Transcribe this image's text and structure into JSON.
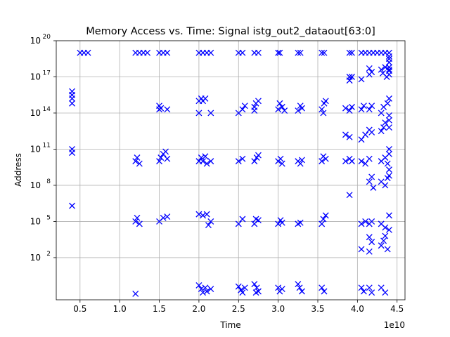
{
  "chart_data": {
    "type": "scatter",
    "title": "Memory Access vs. Time: Signal istg_out2_dataout[63:0]",
    "xlabel": "Time",
    "ylabel": "Address",
    "x_offset_label": "1e10",
    "x_scale": "linear",
    "y_scale": "log",
    "xlim": [
      0.2,
      4.6
    ],
    "ylim_exp": [
      -1.5,
      20
    ],
    "x_ticks": [
      "0.5",
      "1.0",
      "1.5",
      "2.0",
      "2.5",
      "3.0",
      "3.5",
      "4.0",
      "4.5"
    ],
    "y_ticks": [
      {
        "base": "10",
        "exp": "2"
      },
      {
        "base": "10",
        "exp": "5"
      },
      {
        "base": "10",
        "exp": "8"
      },
      {
        "base": "10",
        "exp": "11"
      },
      {
        "base": "10",
        "exp": "14"
      },
      {
        "base": "10",
        "exp": "17"
      },
      {
        "base": "10",
        "exp": "20"
      }
    ],
    "grid": true,
    "marker": "x",
    "marker_color": "#0000ff",
    "series": [
      {
        "name": "",
        "points": [
          [
            0.4,
            15.2
          ],
          [
            0.4,
            15.5
          ],
          [
            0.4,
            15.8
          ],
          [
            0.4,
            14.8
          ],
          [
            0.4,
            11.0
          ],
          [
            0.4,
            10.7
          ],
          [
            0.4,
            6.3
          ],
          [
            0.5,
            19.0
          ],
          [
            0.55,
            19.0
          ],
          [
            0.6,
            19.0
          ],
          [
            1.2,
            19.0
          ],
          [
            1.25,
            19.0
          ],
          [
            1.3,
            19.0
          ],
          [
            1.35,
            19.0
          ],
          [
            1.5,
            19.0
          ],
          [
            1.55,
            19.0
          ],
          [
            1.6,
            19.0
          ],
          [
            2.0,
            19.0
          ],
          [
            2.05,
            19.0
          ],
          [
            2.1,
            19.0
          ],
          [
            2.15,
            19.0
          ],
          [
            2.5,
            19.0
          ],
          [
            2.55,
            19.0
          ],
          [
            2.7,
            19.0
          ],
          [
            2.75,
            19.0
          ],
          [
            3.0,
            19.0
          ],
          [
            3.02,
            19.0
          ],
          [
            3.25,
            19.0
          ],
          [
            3.28,
            19.0
          ],
          [
            3.55,
            19.0
          ],
          [
            3.58,
            19.0
          ],
          [
            3.9,
            19.0
          ],
          [
            3.93,
            19.0
          ],
          [
            4.05,
            19.0
          ],
          [
            4.1,
            19.0
          ],
          [
            4.15,
            19.0
          ],
          [
            4.2,
            19.0
          ],
          [
            4.25,
            19.0
          ],
          [
            4.3,
            19.0
          ],
          [
            4.35,
            19.0
          ],
          [
            4.4,
            19.0
          ],
          [
            4.4,
            18.7
          ],
          [
            4.4,
            18.5
          ],
          [
            4.4,
            18.2
          ],
          [
            4.4,
            17.8
          ],
          [
            4.4,
            17.5
          ],
          [
            4.4,
            17.2
          ],
          [
            3.9,
            17.0
          ],
          [
            3.9,
            16.7
          ],
          [
            3.93,
            17.0
          ],
          [
            4.05,
            16.8
          ],
          [
            4.15,
            17.2
          ],
          [
            4.15,
            17.7
          ],
          [
            4.18,
            17.4
          ],
          [
            4.3,
            17.6
          ],
          [
            4.32,
            17.3
          ],
          [
            4.35,
            17.8
          ],
          [
            4.37,
            17.0
          ],
          [
            4.4,
            17.6
          ],
          [
            1.5,
            14.3
          ],
          [
            1.5,
            14.6
          ],
          [
            1.52,
            14.4
          ],
          [
            1.6,
            14.3
          ],
          [
            2.0,
            15.0
          ],
          [
            2.03,
            15.2
          ],
          [
            2.05,
            15.0
          ],
          [
            2.08,
            15.2
          ],
          [
            2.0,
            14.0
          ],
          [
            2.15,
            14.0
          ],
          [
            2.5,
            14.0
          ],
          [
            2.55,
            14.3
          ],
          [
            2.58,
            14.6
          ],
          [
            2.7,
            14.2
          ],
          [
            2.72,
            14.8
          ],
          [
            2.75,
            15.0
          ],
          [
            2.7,
            14.5
          ],
          [
            3.0,
            14.3
          ],
          [
            3.02,
            14.8
          ],
          [
            3.05,
            14.5
          ],
          [
            3.08,
            14.2
          ],
          [
            3.25,
            14.2
          ],
          [
            3.28,
            14.6
          ],
          [
            3.3,
            14.4
          ],
          [
            3.55,
            14.3
          ],
          [
            3.58,
            14.8
          ],
          [
            3.6,
            15.0
          ],
          [
            3.57,
            14.0
          ],
          [
            3.85,
            14.4
          ],
          [
            3.9,
            14.2
          ],
          [
            3.93,
            14.5
          ],
          [
            4.05,
            14.3
          ],
          [
            4.08,
            14.6
          ],
          [
            4.15,
            14.3
          ],
          [
            4.18,
            14.6
          ],
          [
            4.3,
            14.0
          ],
          [
            4.33,
            14.5
          ],
          [
            4.38,
            14.8
          ],
          [
            4.4,
            15.2
          ],
          [
            4.4,
            13.8
          ],
          [
            3.85,
            12.2
          ],
          [
            3.9,
            12.0
          ],
          [
            4.05,
            11.8
          ],
          [
            4.1,
            12.2
          ],
          [
            4.15,
            12.6
          ],
          [
            4.18,
            12.4
          ],
          [
            4.3,
            12.5
          ],
          [
            4.33,
            12.8
          ],
          [
            4.35,
            13.2
          ],
          [
            4.4,
            13.4
          ],
          [
            4.4,
            12.8
          ],
          [
            1.2,
            10.0
          ],
          [
            1.22,
            10.3
          ],
          [
            1.25,
            9.8
          ],
          [
            1.5,
            10.0
          ],
          [
            1.52,
            10.3
          ],
          [
            1.55,
            10.6
          ],
          [
            1.58,
            10.8
          ],
          [
            1.6,
            10.2
          ],
          [
            2.0,
            10.0
          ],
          [
            2.03,
            10.3
          ],
          [
            2.05,
            10.0
          ],
          [
            2.08,
            10.4
          ],
          [
            2.1,
            9.8
          ],
          [
            2.15,
            10.0
          ],
          [
            2.5,
            10.0
          ],
          [
            2.55,
            10.2
          ],
          [
            2.7,
            10.0
          ],
          [
            2.73,
            10.3
          ],
          [
            2.75,
            10.5
          ],
          [
            3.0,
            10.0
          ],
          [
            3.03,
            10.2
          ],
          [
            3.05,
            9.8
          ],
          [
            3.25,
            10.0
          ],
          [
            3.28,
            9.8
          ],
          [
            3.3,
            10.1
          ],
          [
            3.55,
            10.0
          ],
          [
            3.57,
            10.4
          ],
          [
            3.6,
            10.2
          ],
          [
            3.85,
            10.0
          ],
          [
            3.9,
            10.2
          ],
          [
            3.93,
            10.0
          ],
          [
            4.05,
            10.0
          ],
          [
            4.1,
            9.8
          ],
          [
            4.15,
            10.2
          ],
          [
            4.3,
            10.0
          ],
          [
            4.35,
            10.3
          ],
          [
            4.38,
            9.8
          ],
          [
            4.4,
            11.0
          ],
          [
            4.4,
            10.6
          ],
          [
            4.4,
            9.3
          ],
          [
            3.9,
            7.2
          ],
          [
            4.15,
            8.3
          ],
          [
            4.18,
            8.7
          ],
          [
            4.2,
            7.8
          ],
          [
            4.3,
            8.3
          ],
          [
            4.35,
            8.0
          ],
          [
            4.38,
            8.6
          ],
          [
            4.4,
            8.8
          ],
          [
            1.2,
            5.0
          ],
          [
            1.22,
            5.3
          ],
          [
            1.25,
            4.8
          ],
          [
            1.5,
            5.0
          ],
          [
            1.55,
            5.3
          ],
          [
            1.6,
            5.4
          ],
          [
            2.0,
            5.6
          ],
          [
            2.05,
            5.5
          ],
          [
            2.1,
            5.6
          ],
          [
            2.15,
            5.0
          ],
          [
            2.12,
            4.7
          ],
          [
            2.5,
            4.8
          ],
          [
            2.55,
            5.2
          ],
          [
            2.7,
            4.8
          ],
          [
            2.72,
            5.2
          ],
          [
            2.75,
            5.1
          ],
          [
            3.0,
            4.8
          ],
          [
            3.03,
            5.1
          ],
          [
            3.05,
            4.9
          ],
          [
            3.25,
            4.8
          ],
          [
            3.28,
            4.9
          ],
          [
            3.55,
            4.8
          ],
          [
            3.57,
            5.2
          ],
          [
            3.6,
            5.5
          ],
          [
            4.05,
            4.8
          ],
          [
            4.1,
            5.0
          ],
          [
            4.15,
            4.8
          ],
          [
            4.18,
            5.0
          ],
          [
            4.3,
            4.8
          ],
          [
            4.35,
            4.5
          ],
          [
            4.4,
            4.3
          ],
          [
            4.4,
            5.5
          ],
          [
            4.15,
            3.7
          ],
          [
            4.18,
            3.3
          ],
          [
            4.3,
            3.0
          ],
          [
            4.33,
            3.4
          ],
          [
            4.35,
            3.8
          ],
          [
            4.38,
            2.7
          ],
          [
            4.05,
            2.7
          ],
          [
            4.15,
            2.5
          ],
          [
            1.2,
            -1.0
          ],
          [
            2.0,
            -0.3
          ],
          [
            2.03,
            -0.6
          ],
          [
            2.05,
            -0.9
          ],
          [
            2.08,
            -0.5
          ],
          [
            2.1,
            -0.8
          ],
          [
            2.15,
            -0.6
          ],
          [
            2.5,
            -0.4
          ],
          [
            2.53,
            -0.7
          ],
          [
            2.55,
            -0.9
          ],
          [
            2.58,
            -0.5
          ],
          [
            2.7,
            -0.2
          ],
          [
            2.73,
            -0.5
          ],
          [
            2.75,
            -0.8
          ],
          [
            2.72,
            -0.9
          ],
          [
            3.0,
            -0.5
          ],
          [
            3.02,
            -0.8
          ],
          [
            3.05,
            -0.6
          ],
          [
            3.25,
            -0.2
          ],
          [
            3.27,
            -0.5
          ],
          [
            3.3,
            -0.8
          ],
          [
            3.55,
            -0.5
          ],
          [
            3.58,
            -0.8
          ],
          [
            4.05,
            -0.5
          ],
          [
            4.08,
            -0.8
          ],
          [
            4.15,
            -0.5
          ],
          [
            4.18,
            -0.9
          ],
          [
            4.3,
            -0.5
          ],
          [
            4.35,
            -0.9
          ]
        ]
      }
    ]
  }
}
